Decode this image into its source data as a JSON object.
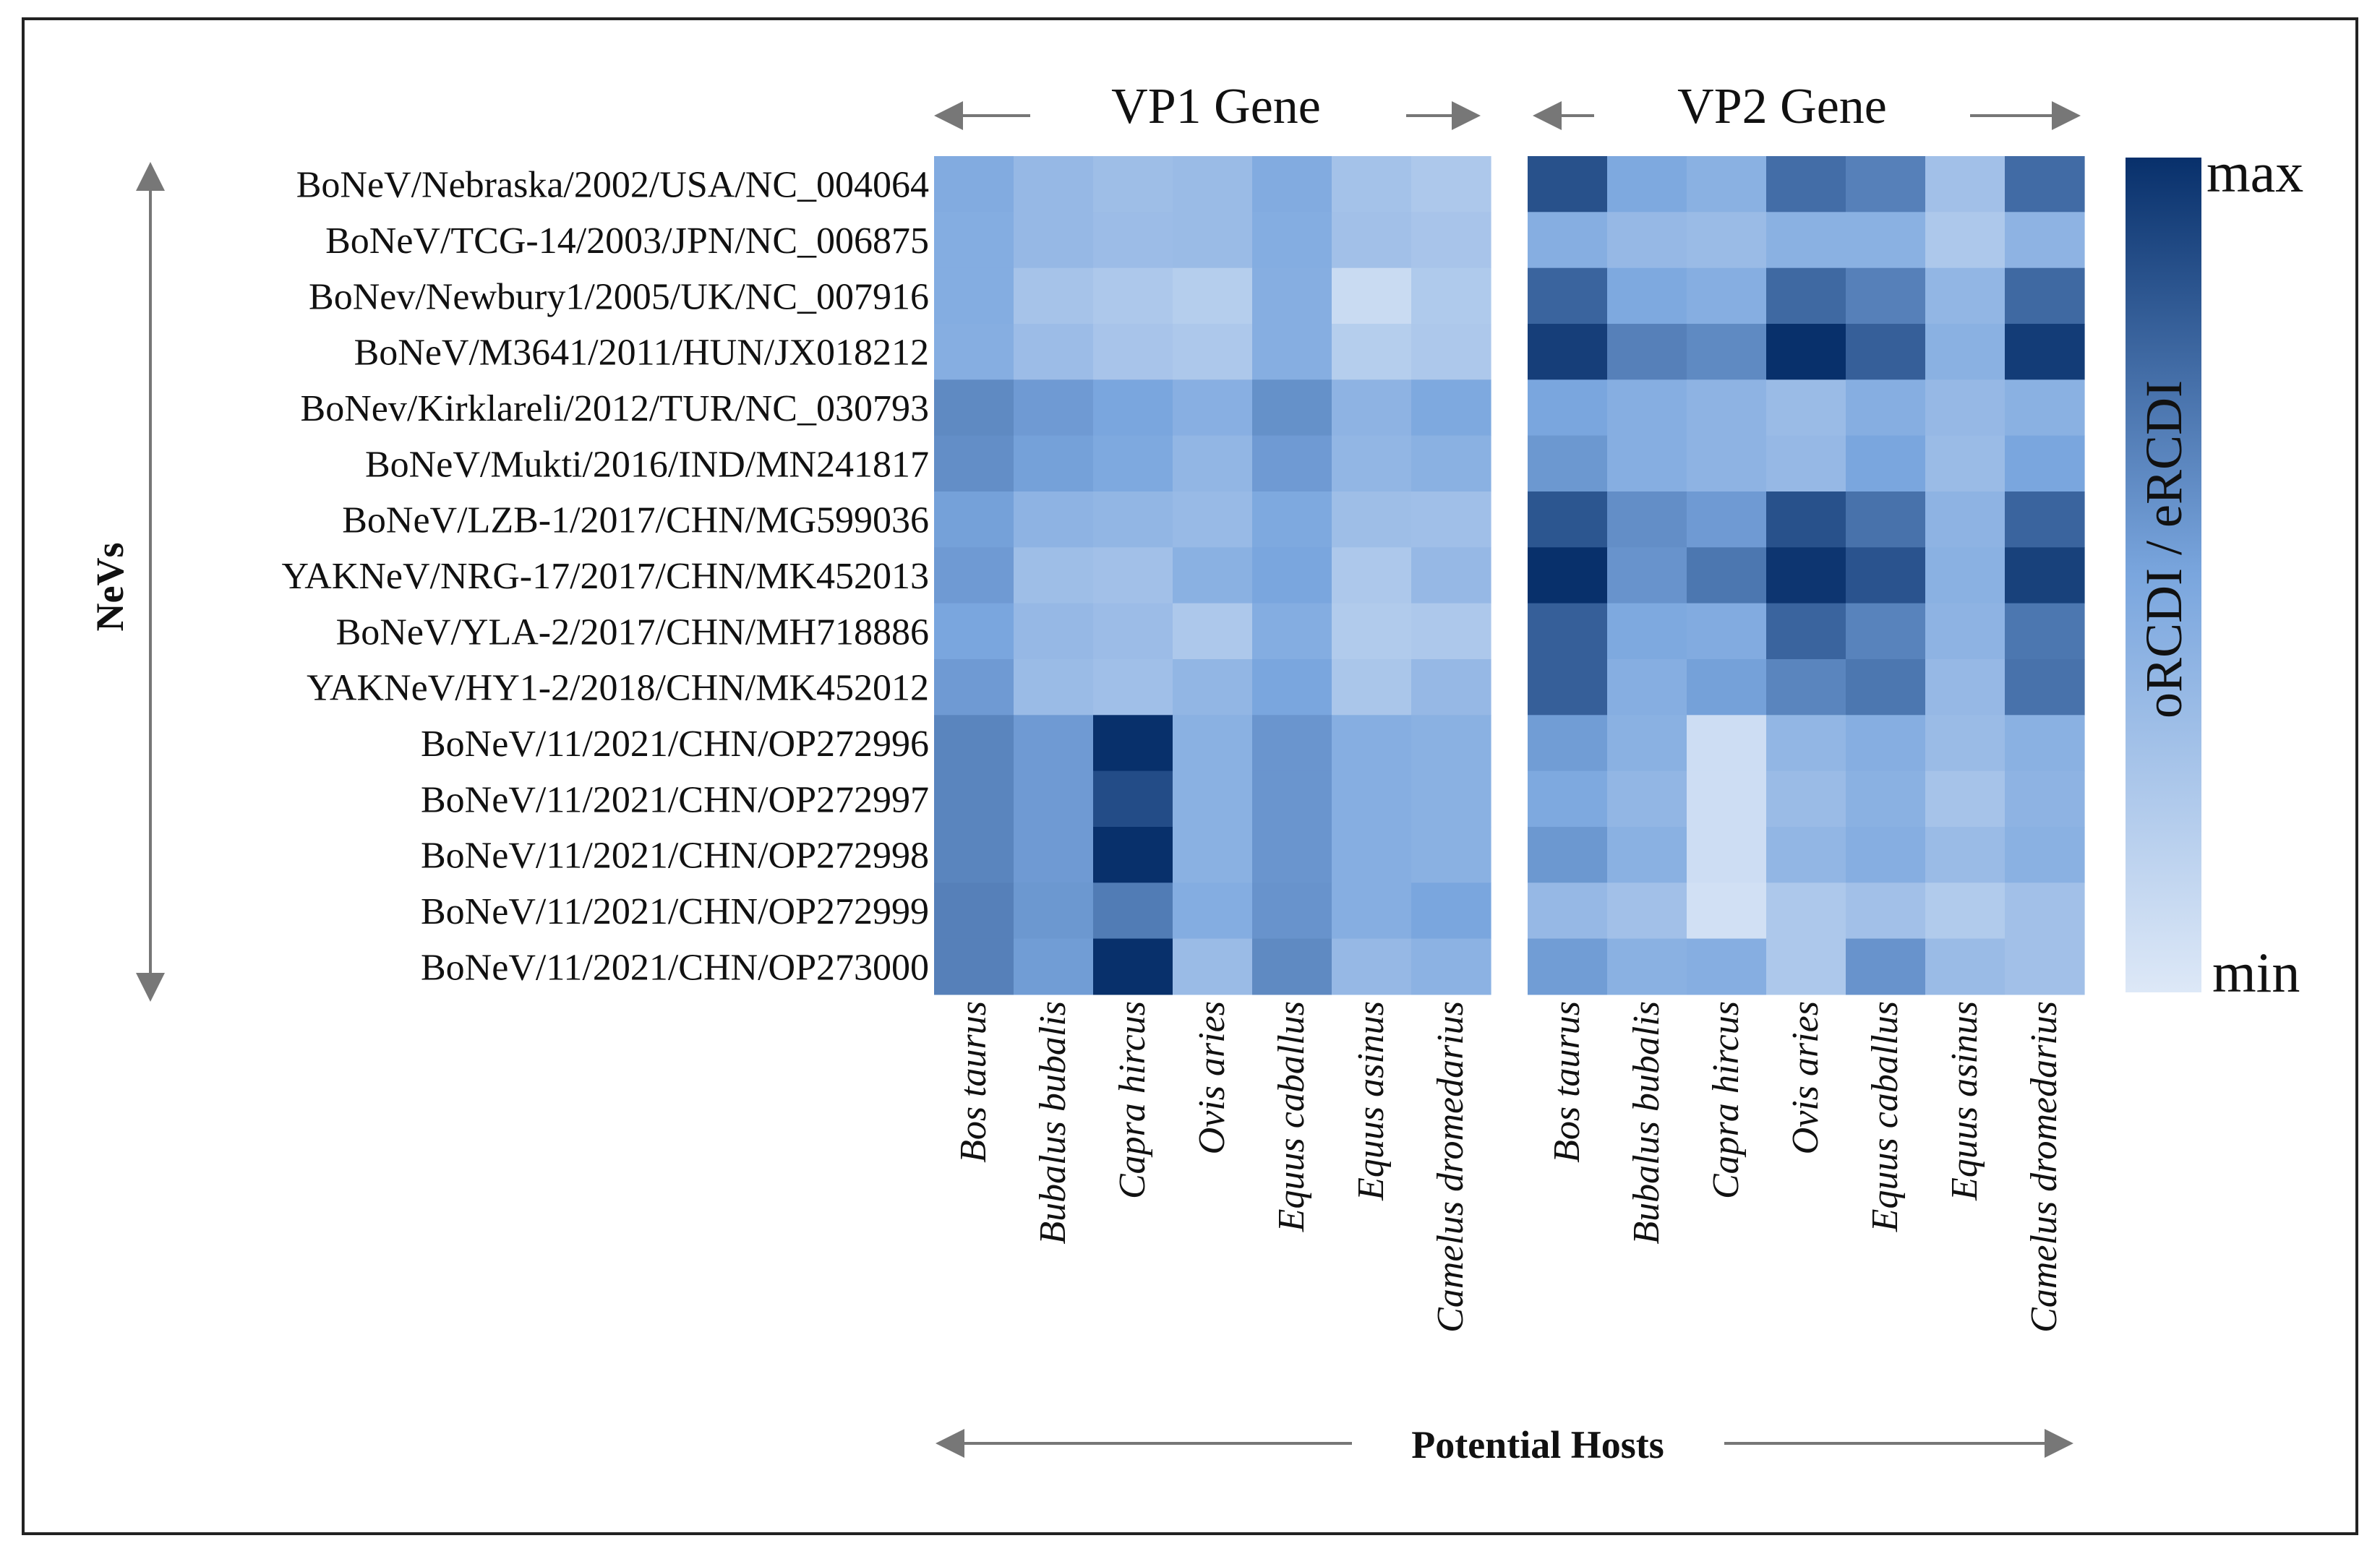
{
  "chart_data": {
    "type": "heatmap",
    "colors": {
      "min": "#dde8f7",
      "mid": "#7aa6de",
      "max": "#08306b",
      "frame": "#222222",
      "arrow": "#777777"
    },
    "y_axis_title": "NeVs",
    "x_axis_title": "Potential Hosts",
    "colorbar": {
      "title": "oRCDI / eRCDI",
      "min_label": "min",
      "max_label": "max"
    },
    "rows": [
      "BoNeV/Nebraska/2002/USA/NC_004064",
      "BoNeV/TCG-14/2003/JPN/NC_006875",
      "BoNev/Newbury1/2005/UK/NC_007916",
      "BoNeV/M3641/2011/HUN/JX018212",
      "BoNev/Kirklareli/2012/TUR/NC_030793",
      "BoNeV/Mukti/2016/IND/MN241817",
      "BoNeV/LZB-1/2017/CHN/MG599036",
      "YAKNeV/NRG-17/2017/CHN/MK452013",
      "BoNeV/YLA-2/2017/CHN/MH718886",
      "YAKNeV/HY1-2/2018/CHN/MK452012",
      "BoNeV/11/2021/CHN/OP272996",
      "BoNeV/11/2021/CHN/OP272997",
      "BoNeV/11/2021/CHN/OP272998",
      "BoNeV/11/2021/CHN/OP272999",
      "BoNeV/11/2021/CHN/OP273000"
    ],
    "hosts": [
      "Bos taurus",
      "Bubalus bubalis",
      "Capra hircus",
      "Ovis aries",
      "Equus caballus",
      "Equus asinus",
      "Camelus dromedarius"
    ],
    "panels": [
      {
        "title": "VP1 Gene",
        "values": [
          [
            0.46,
            0.36,
            0.32,
            0.34,
            0.46,
            0.29,
            0.24
          ],
          [
            0.45,
            0.36,
            0.33,
            0.34,
            0.45,
            0.3,
            0.27
          ],
          [
            0.45,
            0.28,
            0.24,
            0.2,
            0.44,
            0.1,
            0.23
          ],
          [
            0.44,
            0.33,
            0.27,
            0.24,
            0.44,
            0.2,
            0.24
          ],
          [
            0.62,
            0.55,
            0.5,
            0.43,
            0.59,
            0.4,
            0.48
          ],
          [
            0.6,
            0.52,
            0.48,
            0.38,
            0.55,
            0.38,
            0.42
          ],
          [
            0.52,
            0.4,
            0.38,
            0.35,
            0.48,
            0.32,
            0.31
          ],
          [
            0.55,
            0.32,
            0.3,
            0.42,
            0.5,
            0.24,
            0.36
          ],
          [
            0.5,
            0.36,
            0.33,
            0.24,
            0.45,
            0.22,
            0.24
          ],
          [
            0.55,
            0.34,
            0.31,
            0.38,
            0.5,
            0.26,
            0.36
          ],
          [
            0.64,
            0.55,
            1.0,
            0.42,
            0.57,
            0.44,
            0.42
          ],
          [
            0.64,
            0.55,
            0.88,
            0.42,
            0.57,
            0.44,
            0.42
          ],
          [
            0.64,
            0.55,
            1.0,
            0.42,
            0.57,
            0.44,
            0.42
          ],
          [
            0.66,
            0.56,
            0.68,
            0.45,
            0.58,
            0.44,
            0.5
          ],
          [
            0.66,
            0.54,
            1.0,
            0.34,
            0.62,
            0.36,
            0.41
          ]
        ]
      },
      {
        "title": "VP2 Gene",
        "values": [
          [
            0.86,
            0.48,
            0.42,
            0.74,
            0.66,
            0.3,
            0.75
          ],
          [
            0.44,
            0.36,
            0.34,
            0.42,
            0.42,
            0.24,
            0.4
          ],
          [
            0.78,
            0.48,
            0.44,
            0.76,
            0.66,
            0.38,
            0.76
          ],
          [
            0.94,
            0.66,
            0.62,
            1.0,
            0.8,
            0.42,
            0.95
          ],
          [
            0.5,
            0.44,
            0.4,
            0.34,
            0.44,
            0.36,
            0.42
          ],
          [
            0.56,
            0.44,
            0.4,
            0.36,
            0.5,
            0.34,
            0.5
          ],
          [
            0.84,
            0.6,
            0.55,
            0.86,
            0.72,
            0.4,
            0.78
          ],
          [
            1.0,
            0.58,
            0.7,
            0.98,
            0.85,
            0.42,
            0.93
          ],
          [
            0.8,
            0.48,
            0.46,
            0.78,
            0.65,
            0.4,
            0.7
          ],
          [
            0.8,
            0.44,
            0.52,
            0.64,
            0.7,
            0.36,
            0.72
          ],
          [
            0.54,
            0.42,
            0.08,
            0.38,
            0.44,
            0.34,
            0.42
          ],
          [
            0.48,
            0.38,
            0.08,
            0.34,
            0.42,
            0.28,
            0.4
          ],
          [
            0.56,
            0.42,
            0.08,
            0.38,
            0.44,
            0.34,
            0.42
          ],
          [
            0.36,
            0.3,
            0.06,
            0.24,
            0.3,
            0.22,
            0.3
          ],
          [
            0.54,
            0.42,
            0.44,
            0.24,
            0.58,
            0.34,
            0.3
          ]
        ]
      }
    ]
  }
}
